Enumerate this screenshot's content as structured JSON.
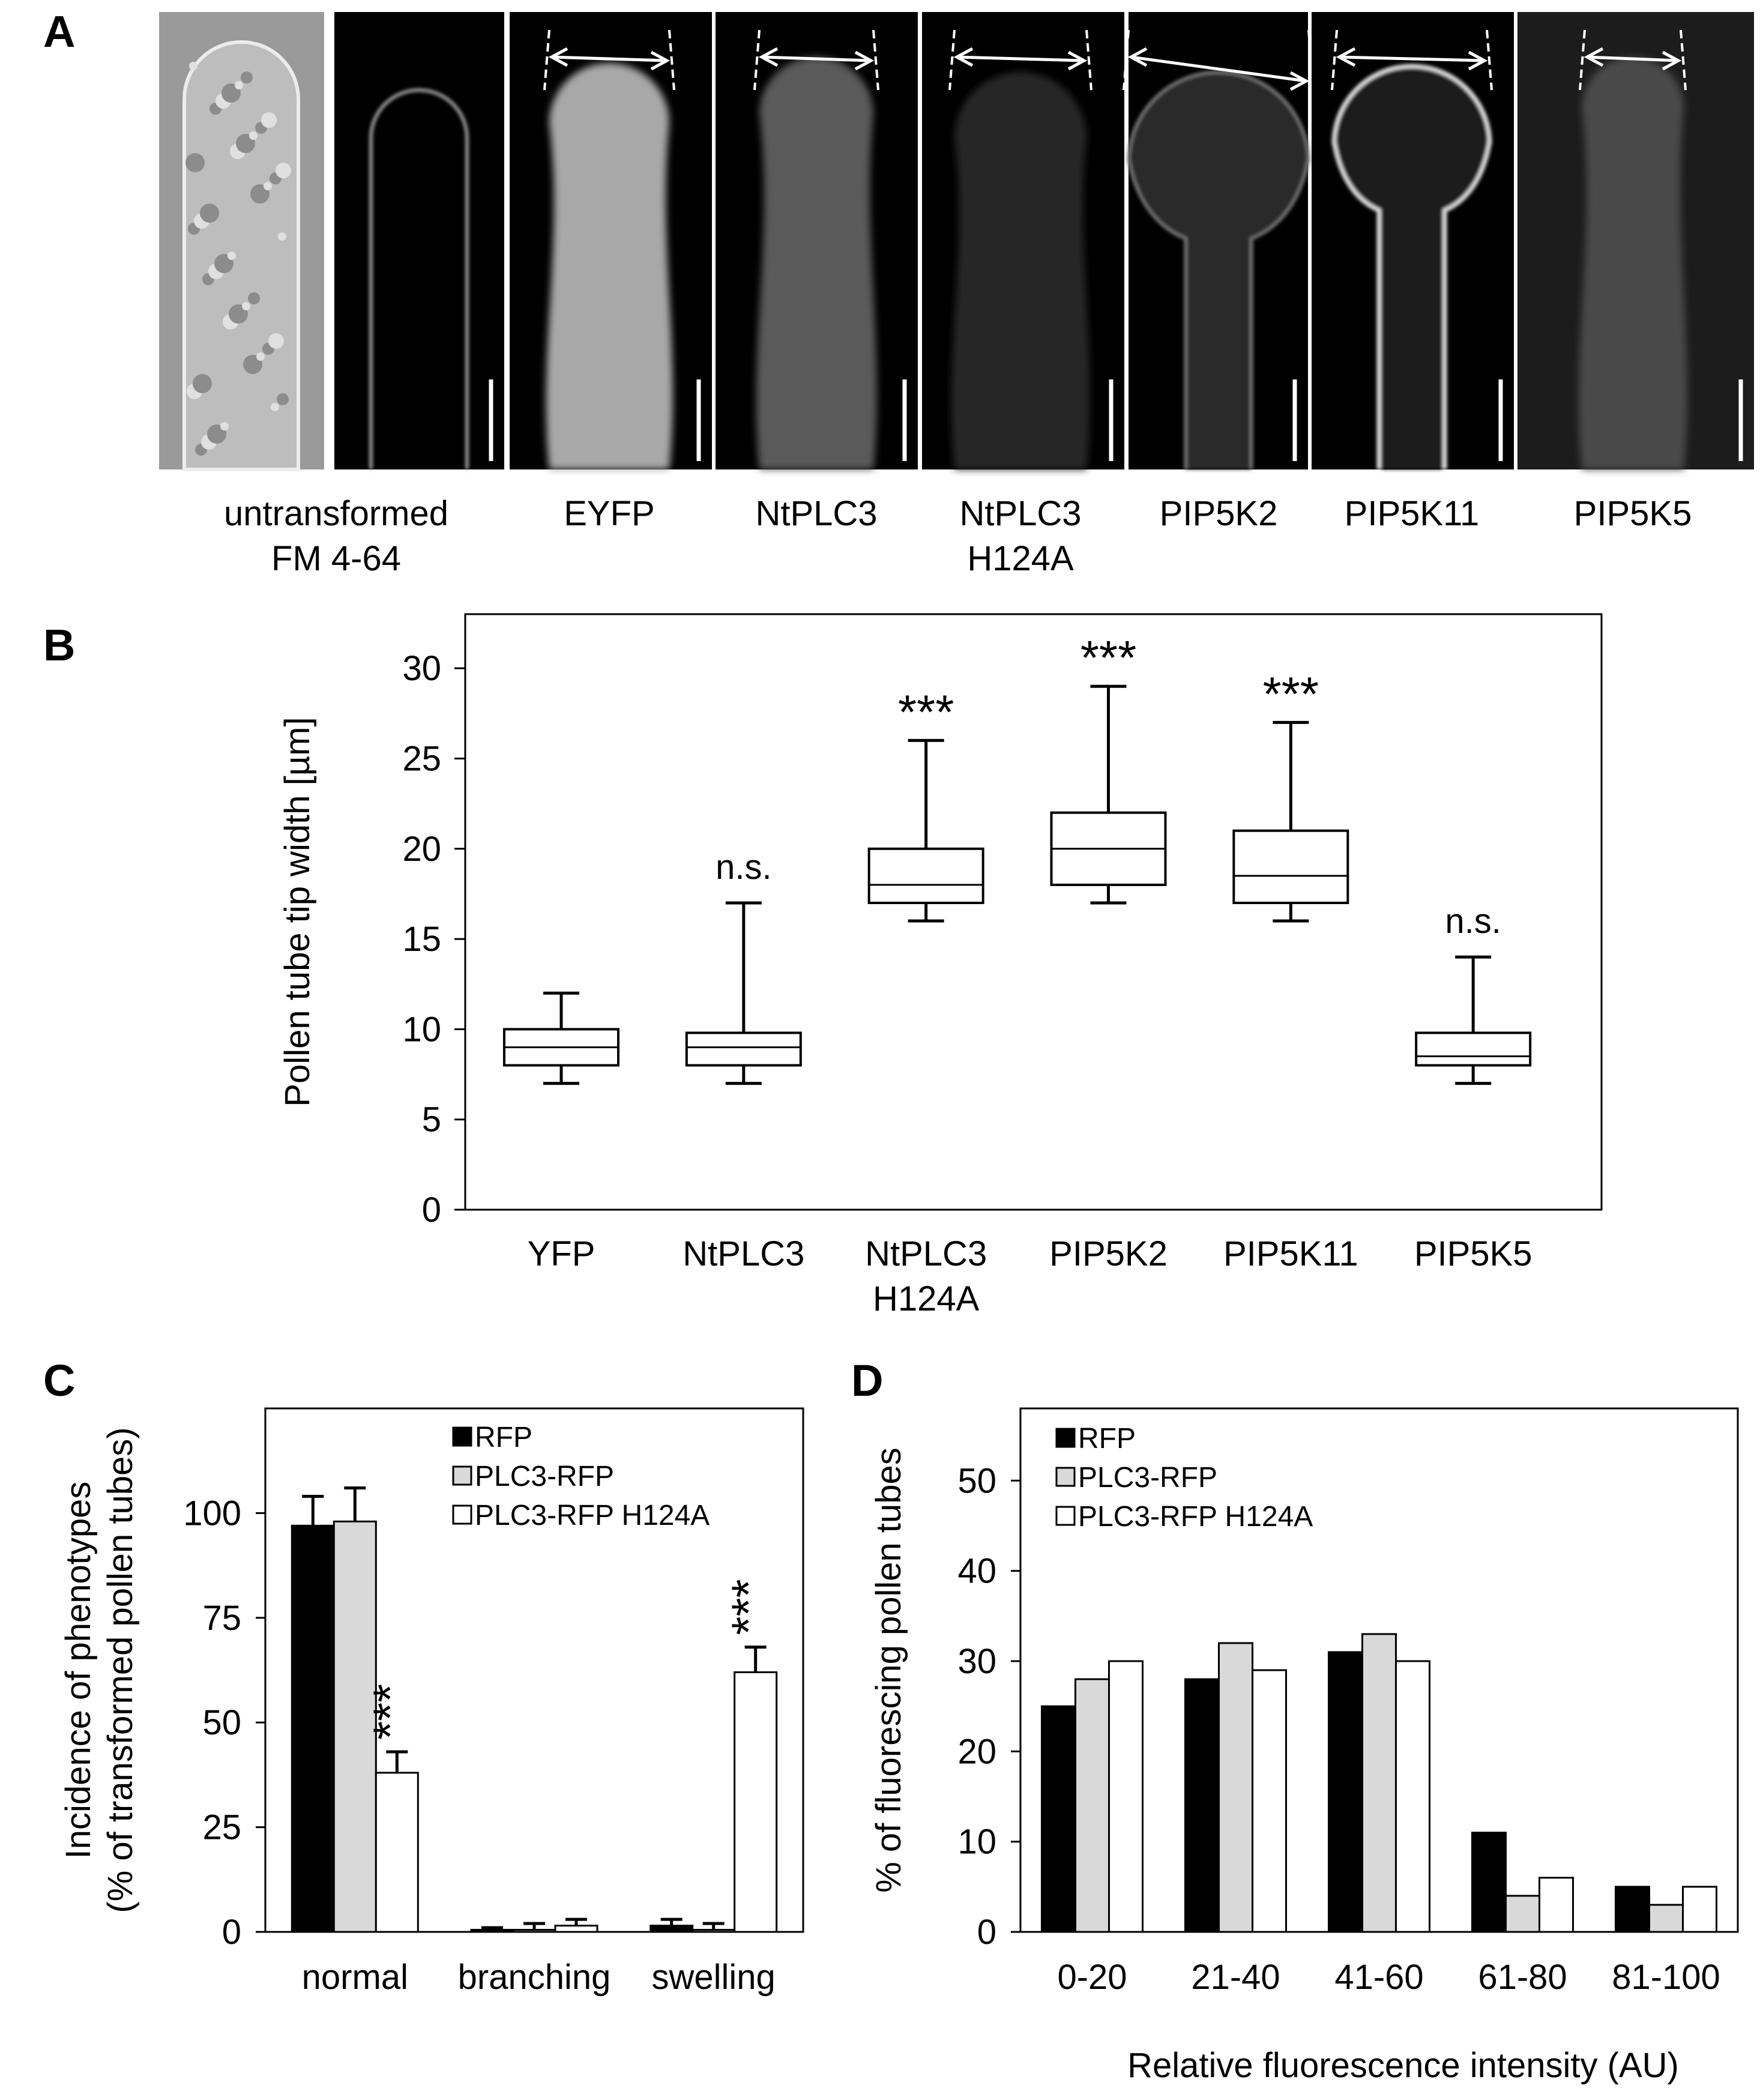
{
  "panel_labels": [
    "A",
    "B",
    "C",
    "D"
  ],
  "panel_a": {
    "images": [
      {
        "label_lines": [
          "untransformed",
          "FM 4-64"
        ]
      },
      {
        "label_lines": [
          "EYFP"
        ]
      },
      {
        "label_lines": [
          "NtPLC3"
        ]
      },
      {
        "label_lines": [
          "NtPLC3",
          "H124A"
        ]
      },
      {
        "label_lines": [
          "PIP5K2"
        ]
      },
      {
        "label_lines": [
          "PIP5K11"
        ]
      },
      {
        "label_lines": [
          "PIP5K5"
        ]
      }
    ]
  },
  "chart_data": [
    {
      "panel": "B",
      "type": "boxplot",
      "ylabel": "Pollen tube tip width [µm]",
      "ylim": [
        0,
        33
      ],
      "yticks": [
        0,
        5,
        10,
        15,
        20,
        25,
        30
      ],
      "grid": false,
      "categories": [
        [
          "YFP"
        ],
        [
          "NtPLC3"
        ],
        [
          "NtPLC3",
          "H124A"
        ],
        [
          "PIP5K2"
        ],
        [
          "PIP5K11"
        ],
        [
          "PIP5K5"
        ]
      ],
      "boxes": [
        {
          "min": 7,
          "q1": 8,
          "median": 9,
          "q3": 10,
          "max": 12,
          "annotation": ""
        },
        {
          "min": 7,
          "q1": 8,
          "median": 9,
          "q3": 9.8,
          "max": 17,
          "annotation": "n.s."
        },
        {
          "min": 16,
          "q1": 17,
          "median": 18,
          "q3": 20,
          "max": 26,
          "annotation": "***"
        },
        {
          "min": 17,
          "q1": 18,
          "median": 20,
          "q3": 22,
          "max": 29,
          "annotation": "***"
        },
        {
          "min": 16,
          "q1": 17,
          "median": 18.5,
          "q3": 21,
          "max": 27,
          "annotation": "***"
        },
        {
          "min": 7,
          "q1": 8,
          "median": 8.5,
          "q3": 9.8,
          "max": 14,
          "annotation": "n.s."
        }
      ]
    },
    {
      "panel": "C",
      "type": "bar",
      "ylabel_lines": [
        "Incidence of phenotypes",
        "(% of transformed pollen tubes)"
      ],
      "ylim": [
        0,
        125
      ],
      "yticks": [
        0,
        25,
        50,
        75,
        100
      ],
      "grid": false,
      "legend_position": "top-right",
      "categories": [
        "normal",
        "branching",
        "swelling"
      ],
      "series": [
        {
          "name": "RFP",
          "color": "#000000",
          "values": [
            97,
            0.5,
            1.5
          ],
          "errors": [
            7,
            0.5,
            1.5
          ]
        },
        {
          "name": "PLC3-RFP",
          "color": "#d9d9d9",
          "values": [
            98,
            0.5,
            0.5
          ],
          "errors": [
            8,
            1.5,
            1.5
          ]
        },
        {
          "name": "PLC3-RFP H124A",
          "color": "#ffffff",
          "values": [
            38,
            1.5,
            62
          ],
          "errors": [
            5,
            1.5,
            6
          ]
        }
      ],
      "annotations": [
        {
          "category": "normal",
          "series": "PLC3-RFP H124A",
          "text": "***"
        },
        {
          "category": "swelling",
          "series": "PLC3-RFP H124A",
          "text": "***"
        }
      ]
    },
    {
      "panel": "D",
      "type": "bar",
      "xlabel": "Relative fluorescence  intensity (AU)",
      "ylabel": "% of fluorescing pollen tubes",
      "ylim": [
        0,
        58
      ],
      "yticks": [
        0,
        10,
        20,
        30,
        40,
        50
      ],
      "grid": false,
      "legend_position": "top-left",
      "categories": [
        "0-20",
        "21-40",
        "41-60",
        "61-80",
        "81-100"
      ],
      "series": [
        {
          "name": "RFP",
          "color": "#000000",
          "values": [
            25,
            28,
            31,
            11,
            5
          ]
        },
        {
          "name": "PLC3-RFP",
          "color": "#d9d9d9",
          "values": [
            28,
            32,
            33,
            4,
            3
          ]
        },
        {
          "name": "PLC3-RFP H124A",
          "color": "#ffffff",
          "values": [
            30,
            29,
            30,
            6,
            5
          ]
        }
      ]
    }
  ]
}
